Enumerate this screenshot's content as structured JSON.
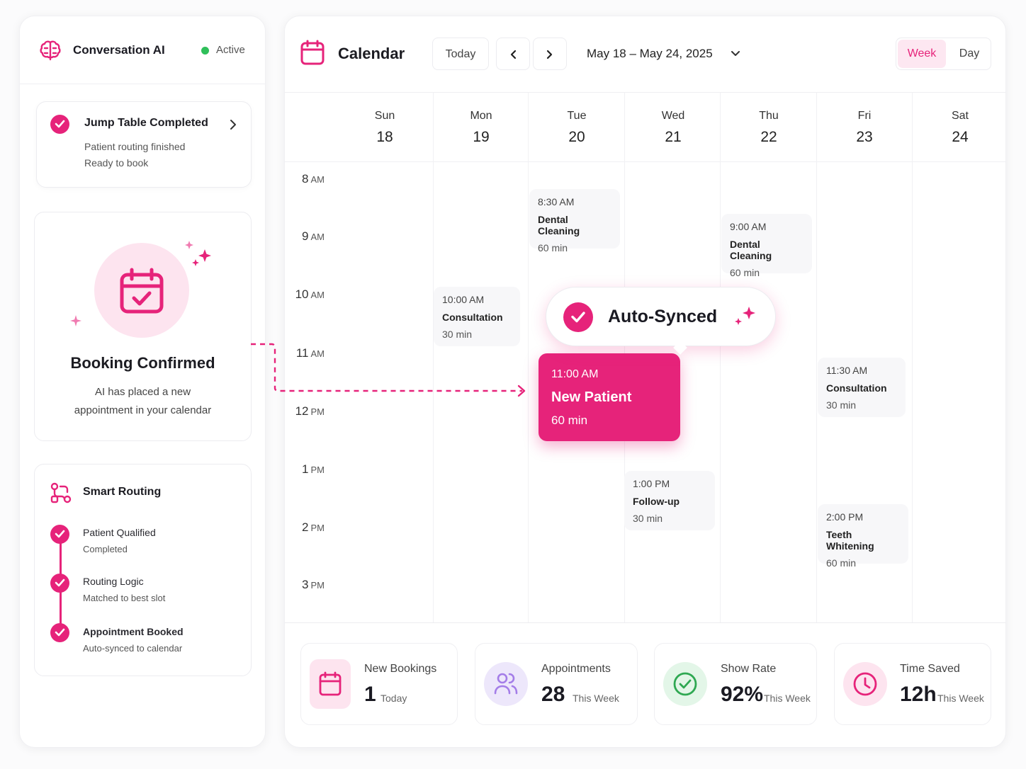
{
  "colors": {
    "accent": "#e6237a",
    "active": "#2fbf5a"
  },
  "sidebar": {
    "app_title": "Conversation AI",
    "status": "Active",
    "jump": {
      "title": "Jump Table Completed",
      "line1": "Patient routing finished",
      "line2": "Ready to book"
    },
    "booking": {
      "title": "Booking Confirmed",
      "line1": "AI has placed a new",
      "line2": "appointment in your calendar"
    },
    "routing": {
      "title": "Smart Routing",
      "steps": [
        {
          "title": "Patient Qualified",
          "sub": "Completed"
        },
        {
          "title": "Routing Logic",
          "sub": "Matched to best slot"
        },
        {
          "title": "Appointment Booked",
          "sub": "Auto-synced to calendar"
        }
      ]
    }
  },
  "calendar": {
    "title": "Calendar",
    "today_label": "Today",
    "range": "May 18 – May 24, 2025",
    "view_week": "Week",
    "view_day": "Day",
    "days": [
      {
        "name": "Sun",
        "date": "18"
      },
      {
        "name": "Mon",
        "date": "19"
      },
      {
        "name": "Tue",
        "date": "20"
      },
      {
        "name": "Wed",
        "date": "21"
      },
      {
        "name": "Thu",
        "date": "22"
      },
      {
        "name": "Fri",
        "date": "23"
      },
      {
        "name": "Sat",
        "date": "24"
      }
    ],
    "hours": [
      {
        "n": "8",
        "p": "AM"
      },
      {
        "n": "9",
        "p": "AM"
      },
      {
        "n": "10",
        "p": "AM"
      },
      {
        "n": "11",
        "p": "AM"
      },
      {
        "n": "12",
        "p": "PM"
      },
      {
        "n": "1",
        "p": "PM"
      },
      {
        "n": "2",
        "p": "PM"
      },
      {
        "n": "3",
        "p": "PM"
      }
    ],
    "events": [
      {
        "time": "8:30 AM",
        "name": "Dental Cleaning",
        "dur": "60 min"
      },
      {
        "time": "9:00 AM",
        "name": "Dental Cleaning",
        "dur": "60 min"
      },
      {
        "time": "10:00 AM",
        "name": "Consultation",
        "dur": "30 min"
      },
      {
        "time": "11:30 AM",
        "name": "Consultation",
        "dur": "30 min"
      },
      {
        "time": "1:00 PM",
        "name": "Follow-up",
        "dur": "30 min"
      },
      {
        "time": "2:00 PM",
        "name": "Teeth Whitening",
        "dur": "60 min"
      }
    ],
    "new_patient": {
      "time": "11:00 AM",
      "name": "New Patient",
      "dur": "60 min"
    },
    "synced_label": "Auto-Synced"
  },
  "stats": [
    {
      "label": "New Bookings",
      "value": "1",
      "period": "Today",
      "icon": "calendar-icon"
    },
    {
      "label": "Appointments",
      "value": "28",
      "period": "This Week",
      "icon": "users-icon"
    },
    {
      "label": "Show Rate",
      "value": "92%",
      "period": "This Week",
      "icon": "check-circle-icon"
    },
    {
      "label": "Time Saved",
      "value": "12h",
      "period": "This Week",
      "icon": "clock-icon"
    }
  ]
}
